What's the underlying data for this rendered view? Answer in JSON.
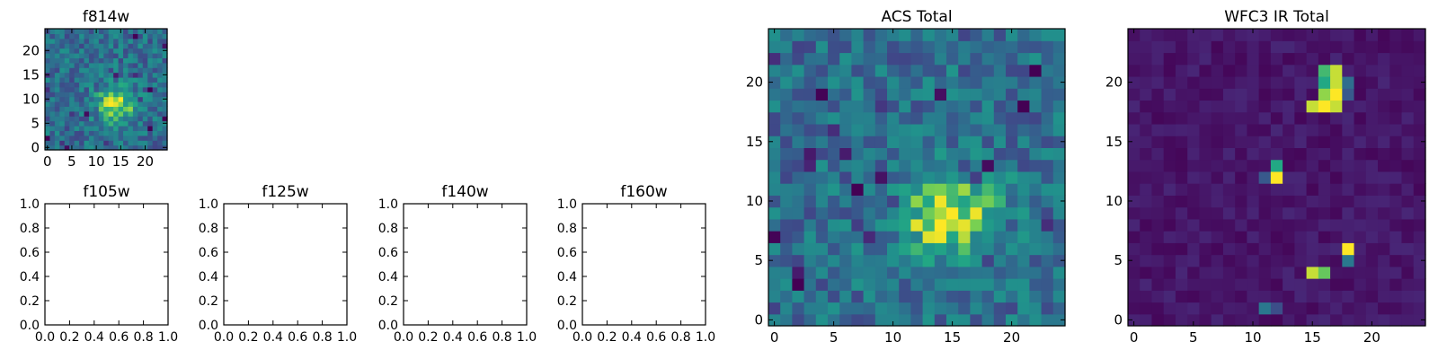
{
  "chart_data": [
    {
      "type": "heatmap",
      "title": "f814w",
      "colormap": "viridis",
      "grid_size": 25,
      "xticks": [
        "0",
        "5",
        "10",
        "15",
        "20"
      ],
      "yticks": [
        "0",
        "5",
        "10",
        "15",
        "20"
      ],
      "source": {
        "center": [
          14,
          9
        ],
        "sigma": 2.6,
        "peak": 1.0,
        "background": 0.45,
        "noise": 0.2
      }
    },
    {
      "type": "empty",
      "title": "f105w",
      "xticks": [
        "0.0",
        "0.2",
        "0.4",
        "0.6",
        "0.8",
        "1.0"
      ],
      "yticks": [
        "0.0",
        "0.2",
        "0.4",
        "0.6",
        "0.8",
        "1.0"
      ]
    },
    {
      "type": "empty",
      "title": "f125w",
      "xticks": [
        "0.0",
        "0.2",
        "0.4",
        "0.6",
        "0.8",
        "1.0"
      ],
      "yticks": [
        "0.0",
        "0.2",
        "0.4",
        "0.6",
        "0.8",
        "1.0"
      ]
    },
    {
      "type": "empty",
      "title": "f140w",
      "xticks": [
        "0.0",
        "0.2",
        "0.4",
        "0.6",
        "0.8",
        "1.0"
      ],
      "yticks": [
        "0.0",
        "0.2",
        "0.4",
        "0.6",
        "0.8",
        "1.0"
      ]
    },
    {
      "type": "empty",
      "title": "f160w",
      "xticks": [
        "0.0",
        "0.2",
        "0.4",
        "0.6",
        "0.8",
        "1.0"
      ],
      "yticks": [
        "0.0",
        "0.2",
        "0.4",
        "0.6",
        "0.8",
        "1.0"
      ]
    },
    {
      "type": "heatmap",
      "title": "ACS Total",
      "colormap": "viridis",
      "grid_size": 25,
      "xticks": [
        "0",
        "5",
        "10",
        "15",
        "20"
      ],
      "yticks": [
        "0",
        "5",
        "10",
        "15",
        "20"
      ],
      "source": {
        "center": [
          14.5,
          9
        ],
        "sigma": 2.8,
        "peak": 1.0,
        "background": 0.45,
        "noise": 0.2
      }
    },
    {
      "type": "heatmap",
      "title": "WFC3 IR Total",
      "colormap": "viridis",
      "grid_size": 25,
      "xticks": [
        "0",
        "5",
        "10",
        "15",
        "20"
      ],
      "yticks": [
        "0",
        "5",
        "10",
        "15",
        "20"
      ],
      "background": 0.08,
      "noise": 0.06,
      "hot_pixels": [
        {
          "x": 17,
          "y": 21,
          "v": 0.95
        },
        {
          "x": 16,
          "y": 21,
          "v": 0.8
        },
        {
          "x": 16,
          "y": 20,
          "v": 0.75
        },
        {
          "x": 17,
          "y": 20,
          "v": 0.95
        },
        {
          "x": 18,
          "y": 20,
          "v": 0.45
        },
        {
          "x": 16,
          "y": 19,
          "v": 0.9
        },
        {
          "x": 17,
          "y": 19,
          "v": 1.0
        },
        {
          "x": 18,
          "y": 19,
          "v": 0.35
        },
        {
          "x": 15,
          "y": 18,
          "v": 0.95
        },
        {
          "x": 16,
          "y": 18,
          "v": 1.0
        },
        {
          "x": 17,
          "y": 18,
          "v": 0.95
        },
        {
          "x": 12,
          "y": 13,
          "v": 0.75
        },
        {
          "x": 11,
          "y": 12,
          "v": 0.35
        },
        {
          "x": 12,
          "y": 12,
          "v": 1.0
        },
        {
          "x": 18,
          "y": 6,
          "v": 1.0
        },
        {
          "x": 18,
          "y": 5,
          "v": 0.5
        },
        {
          "x": 15,
          "y": 4,
          "v": 0.95
        },
        {
          "x": 16,
          "y": 4,
          "v": 0.85
        },
        {
          "x": 11,
          "y": 1,
          "v": 0.5
        },
        {
          "x": 12,
          "y": 1,
          "v": 0.3
        }
      ]
    }
  ]
}
